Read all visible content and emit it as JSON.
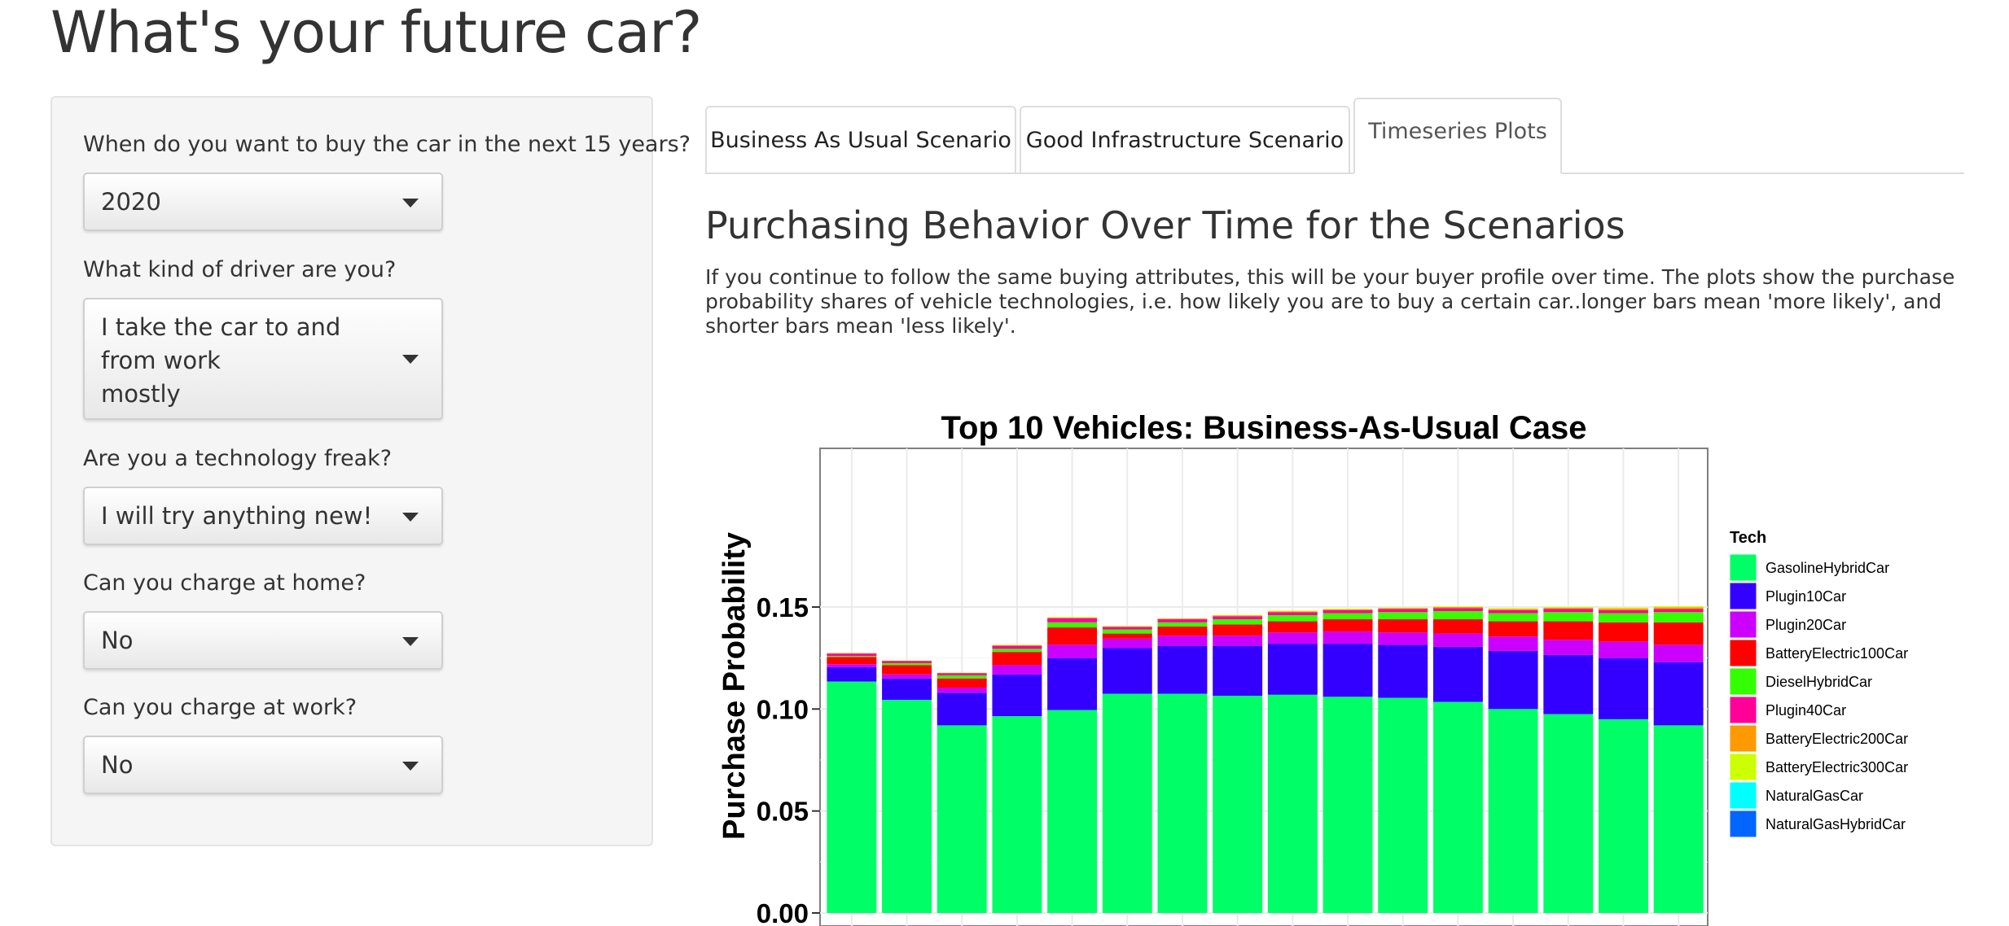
{
  "page": {
    "title": "What's your future car?"
  },
  "sidebar": {
    "questions": [
      {
        "label": "When do you want to buy the car in the next 15 years?",
        "value": "2020"
      },
      {
        "label": "What kind of driver are you?",
        "value_line1": "I take the car to and from work",
        "value_line2": "mostly"
      },
      {
        "label": "Are you a technology freak?",
        "value": "I will try anything new!"
      },
      {
        "label": "Can you charge at home?",
        "value": "No"
      },
      {
        "label": "Can you charge at work?",
        "value": "No"
      }
    ]
  },
  "tabs": [
    {
      "label": "Business As Usual Scenario",
      "active": false
    },
    {
      "label": "Good Infrastructure Scenario",
      "active": false
    },
    {
      "label": "Timeseries Plots",
      "active": true
    }
  ],
  "main": {
    "heading": "Purchasing Behavior Over Time for the Scenarios",
    "description": "If you continue to follow the same buying attributes, this will be your buyer profile over time. The plots show the purchase probability shares of vehicle technologies, i.e. how likely you are to buy a certain car..longer bars mean 'more likely', and shorter bars mean 'less likely'."
  },
  "chart_data": {
    "type": "bar",
    "stacked": true,
    "title": "Top 10 Vehicles: Business-As-Usual Case",
    "ylabel": "Purchase Probability",
    "xlabel": "",
    "ylim": [
      0,
      0.16
    ],
    "yticks": [
      "0.00",
      "0.05",
      "0.10",
      "0.15"
    ],
    "grid": true,
    "legend_title": "Tech",
    "legend_position": "right",
    "categories": [
      "",
      "",
      "",
      "",
      "",
      "",
      "",
      "",
      "",
      "",
      "",
      "",
      "",
      "",
      "",
      ""
    ],
    "series": [
      {
        "name": "GasolineHybridCar",
        "color": "#00ff66",
        "values": [
          0.1135,
          0.1045,
          0.092,
          0.0965,
          0.0995,
          0.1075,
          0.1075,
          0.1065,
          0.107,
          0.106,
          0.1055,
          0.1035,
          0.1,
          0.0975,
          0.095,
          0.092
        ]
      },
      {
        "name": "Plugin10Car",
        "color": "#3300ff",
        "values": [
          0.007,
          0.0105,
          0.016,
          0.0205,
          0.0255,
          0.0225,
          0.0235,
          0.0245,
          0.025,
          0.026,
          0.026,
          0.027,
          0.0285,
          0.029,
          0.03,
          0.031
        ]
      },
      {
        "name": "Plugin20Car",
        "color": "#cc00ff",
        "values": [
          0.0015,
          0.002,
          0.0025,
          0.0045,
          0.0065,
          0.0045,
          0.005,
          0.005,
          0.0055,
          0.006,
          0.006,
          0.0065,
          0.007,
          0.0075,
          0.008,
          0.0085
        ]
      },
      {
        "name": "BatteryElectric100Car",
        "color": "#ff0000",
        "values": [
          0.0035,
          0.0045,
          0.0045,
          0.0065,
          0.0085,
          0.0025,
          0.0045,
          0.0055,
          0.0055,
          0.006,
          0.0065,
          0.007,
          0.0075,
          0.009,
          0.0095,
          0.011
        ]
      },
      {
        "name": "DieselHybridCar",
        "color": "#33ff00",
        "values": [
          0.0005,
          0.001,
          0.0015,
          0.0015,
          0.0025,
          0.002,
          0.002,
          0.0025,
          0.003,
          0.003,
          0.0035,
          0.004,
          0.004,
          0.0045,
          0.0045,
          0.005
        ]
      },
      {
        "name": "Plugin40Car",
        "color": "#ff0099",
        "values": [
          0.0012,
          0.001,
          0.001,
          0.0015,
          0.002,
          0.0012,
          0.0015,
          0.0015,
          0.0015,
          0.0015,
          0.0015,
          0.0015,
          0.0015,
          0.0015,
          0.0015,
          0.0015
        ]
      },
      {
        "name": "BatteryElectric200Car",
        "color": "#ff9900",
        "values": [
          0.0002,
          0.0002,
          0.0002,
          0.0003,
          0.0004,
          0.0003,
          0.0003,
          0.0004,
          0.0004,
          0.0004,
          0.0004,
          0.0005,
          0.0005,
          0.0006,
          0.0007,
          0.0008
        ]
      },
      {
        "name": "BatteryElectric300Car",
        "color": "#ccff00",
        "values": [
          0.0001,
          0.0001,
          0.0001,
          0.0002,
          0.0002,
          0.0002,
          0.0002,
          0.0002,
          0.0003,
          0.0003,
          0.0003,
          0.0003,
          0.0004,
          0.0004,
          0.0005,
          0.0006
        ]
      },
      {
        "name": "NaturalGasCar",
        "color": "#00ffff",
        "values": [
          0,
          0,
          0,
          0,
          0,
          0,
          0,
          0,
          0,
          0,
          0,
          0,
          0,
          0,
          0,
          0
        ]
      },
      {
        "name": "NaturalGasHybridCar",
        "color": "#0066ff",
        "values": [
          0,
          0,
          0,
          0,
          0,
          0,
          0,
          0,
          0,
          0,
          0,
          0,
          0,
          0,
          0,
          0
        ]
      }
    ]
  }
}
